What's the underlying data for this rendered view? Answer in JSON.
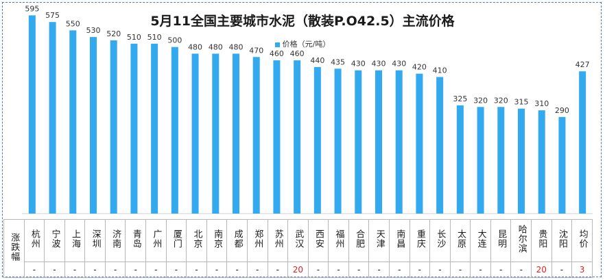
{
  "chart_data": {
    "type": "bar",
    "title": "5月11全国主要城市水泥（散装P.O42.5）主流价格",
    "legend": "价格（元/吨）",
    "series_color": "#33aaf0",
    "ylim": [
      0,
      600
    ],
    "categories": [
      "杭州",
      "宁波",
      "上海",
      "深圳",
      "济南",
      "青岛",
      "广州",
      "厦门",
      "北京",
      "南京",
      "成都",
      "郑州",
      "苏州",
      "武汉",
      "西安",
      "福州",
      "合肥",
      "天津",
      "南昌",
      "重庆",
      "长沙",
      "太原",
      "大连",
      "昆明",
      "哈尔滨",
      "贵阳",
      "沈阳",
      "均价"
    ],
    "values": [
      595,
      575,
      550,
      530,
      520,
      510,
      510,
      500,
      480,
      480,
      480,
      470,
      460,
      460,
      440,
      435,
      430,
      430,
      430,
      420,
      410,
      325,
      320,
      320,
      315,
      310,
      290,
      427
    ],
    "table": {
      "row_header": "涨跌幅",
      "changes": [
        "-",
        "-",
        "-",
        "-",
        "-",
        "-",
        "-",
        "-",
        "-",
        "-",
        "-",
        "-",
        "-",
        "20",
        "-",
        "-",
        "-",
        "-",
        "-",
        "-",
        "-",
        "-",
        "-",
        "-",
        "-",
        "20",
        "-",
        "3"
      ]
    }
  }
}
